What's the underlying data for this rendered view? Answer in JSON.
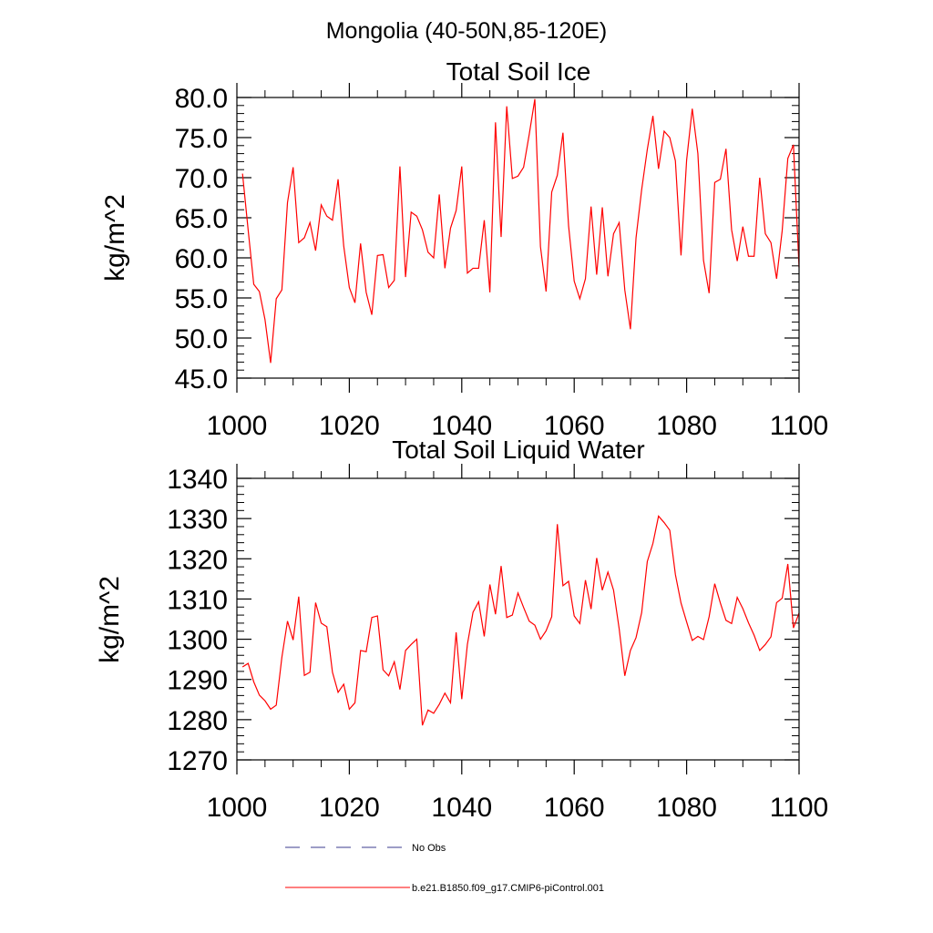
{
  "page": {
    "title": "Mongolia (40-50N,85-120E)"
  },
  "legend": {
    "position": "bottom",
    "entries": [
      {
        "label": "No Obs",
        "color": "#3b3b8f",
        "style": "dashed"
      },
      {
        "label": "b.e21.B1850.f09_g17.CMIP6-piControl.001",
        "color": "#ff0000",
        "style": "solid"
      }
    ]
  },
  "chart_data": [
    {
      "type": "line",
      "title": "Total Soil Ice",
      "ylabel": "kg/m^2",
      "xlabel": "",
      "xlim": [
        1000,
        1100
      ],
      "ylim": [
        45,
        80
      ],
      "grid": false,
      "x_ticks": [
        1000,
        1020,
        1040,
        1060,
        1080,
        1100
      ],
      "x_tick_labels": [
        "1000",
        "1020",
        "1040",
        "1060",
        "1080",
        "1100"
      ],
      "y_ticks": [
        45,
        50,
        55,
        60,
        65,
        70,
        75,
        80
      ],
      "y_tick_labels": [
        "45.0",
        "50.0",
        "55.0",
        "60.0",
        "65.0",
        "70.0",
        "75.0",
        "80.0"
      ],
      "series": [
        {
          "name": "b.e21.B1850.f09_g17.CMIP6-piControl.001",
          "color": "#ff0000",
          "x_start": 1001,
          "x_step": 1,
          "values": [
            70.5,
            63.5,
            56.7,
            55.8,
            52.3,
            46.9,
            54.9,
            56.0,
            66.9,
            71.3,
            61.9,
            62.5,
            64.4,
            60.9,
            66.6,
            65.2,
            64.7,
            69.8,
            61.5,
            56.3,
            54.4,
            61.8,
            55.7,
            52.9,
            60.3,
            60.4,
            56.3,
            57.2,
            71.4,
            57.6,
            65.7,
            65.2,
            63.5,
            60.7,
            60.0,
            67.9,
            58.7,
            63.7,
            65.9,
            71.4,
            58.1,
            58.7,
            58.7,
            64.7,
            55.7,
            76.9,
            62.6,
            78.9,
            69.9,
            70.2,
            71.3,
            75.4,
            79.8,
            61.4,
            55.8,
            68.2,
            70.3,
            75.6,
            64.0,
            57.1,
            54.9,
            57.4,
            66.4,
            57.9,
            66.3,
            57.7,
            63.0,
            64.4,
            56.0,
            51.1,
            62.5,
            68.5,
            73.5,
            77.7,
            71.1,
            75.8,
            75.0,
            72.1,
            60.3,
            72.2,
            78.6,
            73.0,
            59.7,
            55.6,
            69.4,
            69.8,
            73.6,
            63.5,
            59.6,
            63.9,
            60.2,
            60.2,
            70.0,
            63.0,
            61.9,
            57.4,
            63.4,
            72.4,
            74.1,
            58.8
          ]
        }
      ]
    },
    {
      "type": "line",
      "title": "Total Soil Liquid Water",
      "ylabel": "kg/m^2",
      "xlabel": "",
      "xlim": [
        1000,
        1100
      ],
      "ylim": [
        1270,
        1340
      ],
      "grid": false,
      "x_ticks": [
        1000,
        1020,
        1040,
        1060,
        1080,
        1100
      ],
      "x_tick_labels": [
        "1000",
        "1020",
        "1040",
        "1060",
        "1080",
        "1100"
      ],
      "y_ticks": [
        1270,
        1280,
        1290,
        1300,
        1310,
        1320,
        1330,
        1340
      ],
      "y_tick_labels": [
        "1270",
        "1280",
        "1290",
        "1300",
        "1310",
        "1320",
        "1330",
        "1340"
      ],
      "series": [
        {
          "name": "b.e21.B1850.f09_g17.CMIP6-piControl.001",
          "color": "#ff0000",
          "x_start": 1001,
          "x_step": 1,
          "values": [
            1293.1,
            1294.0,
            1289.4,
            1286.1,
            1284.7,
            1282.6,
            1283.6,
            1295.5,
            1304.5,
            1299.8,
            1310.6,
            1291.0,
            1291.8,
            1309.1,
            1304.0,
            1303.1,
            1291.8,
            1286.8,
            1288.8,
            1282.6,
            1284.2,
            1297.2,
            1296.9,
            1305.4,
            1305.8,
            1292.4,
            1290.9,
            1294.4,
            1287.5,
            1297.2,
            1298.7,
            1300.0,
            1278.6,
            1282.4,
            1281.6,
            1283.8,
            1286.6,
            1284.2,
            1301.7,
            1285.1,
            1298.7,
            1306.7,
            1309.3,
            1300.7,
            1313.6,
            1306.2,
            1318.2,
            1305.4,
            1306.0,
            1311.5,
            1307.9,
            1304.5,
            1303.5,
            1300.0,
            1302.1,
            1305.6,
            1328.6,
            1313.3,
            1314.4,
            1305.8,
            1303.9,
            1314.7,
            1307.5,
            1320.2,
            1312.2,
            1316.7,
            1312.2,
            1302.6,
            1290.9,
            1297.2,
            1300.4,
            1306.6,
            1319.3,
            1323.8,
            1330.6,
            1329.0,
            1327.1,
            1316.1,
            1309.0,
            1304.3,
            1299.7,
            1300.7,
            1299.9,
            1305.6,
            1313.8,
            1309.0,
            1304.7,
            1303.9,
            1310.4,
            1307.6,
            1304.1,
            1301.0,
            1297.2,
            1298.7,
            1300.6,
            1309.1,
            1310.2,
            1318.7,
            1302.8,
            1306.5
          ]
        }
      ]
    }
  ]
}
